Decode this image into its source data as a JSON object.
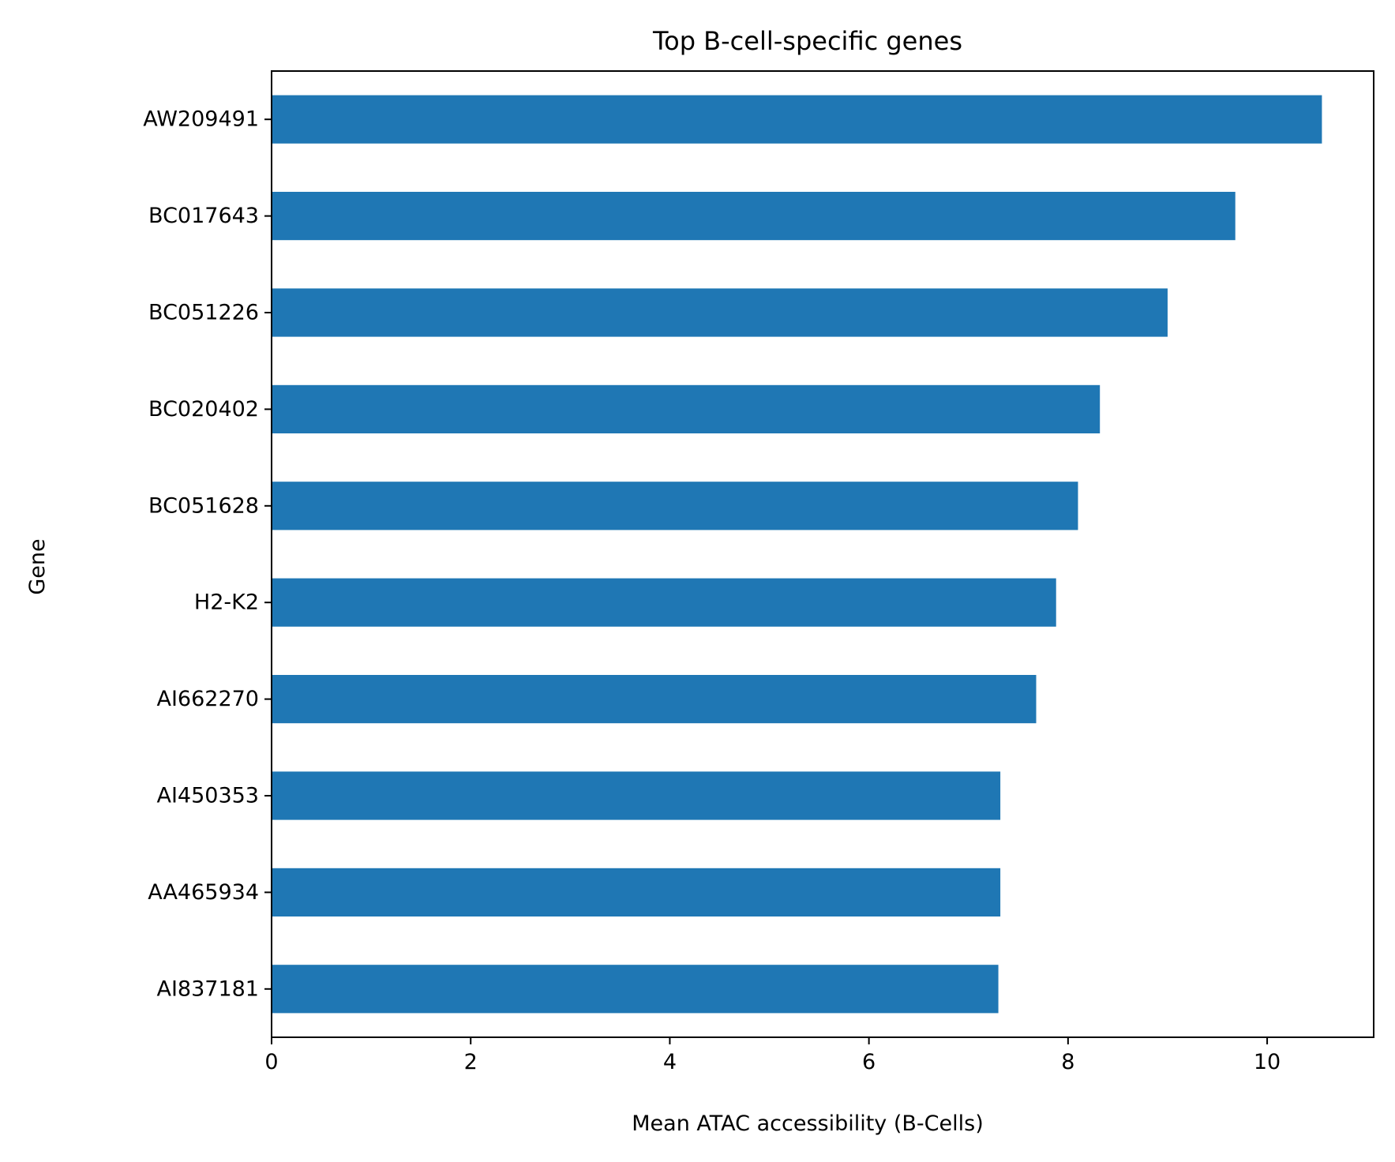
{
  "chart_data": {
    "type": "bar",
    "orientation": "horizontal",
    "title": "Top B-cell-specific genes",
    "xlabel": "Mean ATAC accessibility (B-Cells)",
    "ylabel": "Gene",
    "categories": [
      "AW209491",
      "BC017643",
      "BC051226",
      "BC020402",
      "BC051628",
      "H2-K2",
      "AI662270",
      "AI450353",
      "AA465934",
      "AI837181"
    ],
    "values": [
      10.55,
      9.68,
      9.0,
      8.32,
      8.1,
      7.88,
      7.68,
      7.32,
      7.32,
      7.3
    ],
    "xlim": [
      0,
      11.07
    ],
    "xticks": [
      0,
      2,
      4,
      6,
      8,
      10
    ],
    "bar_color": "#1f77b4",
    "grid": false,
    "legend": false
  }
}
